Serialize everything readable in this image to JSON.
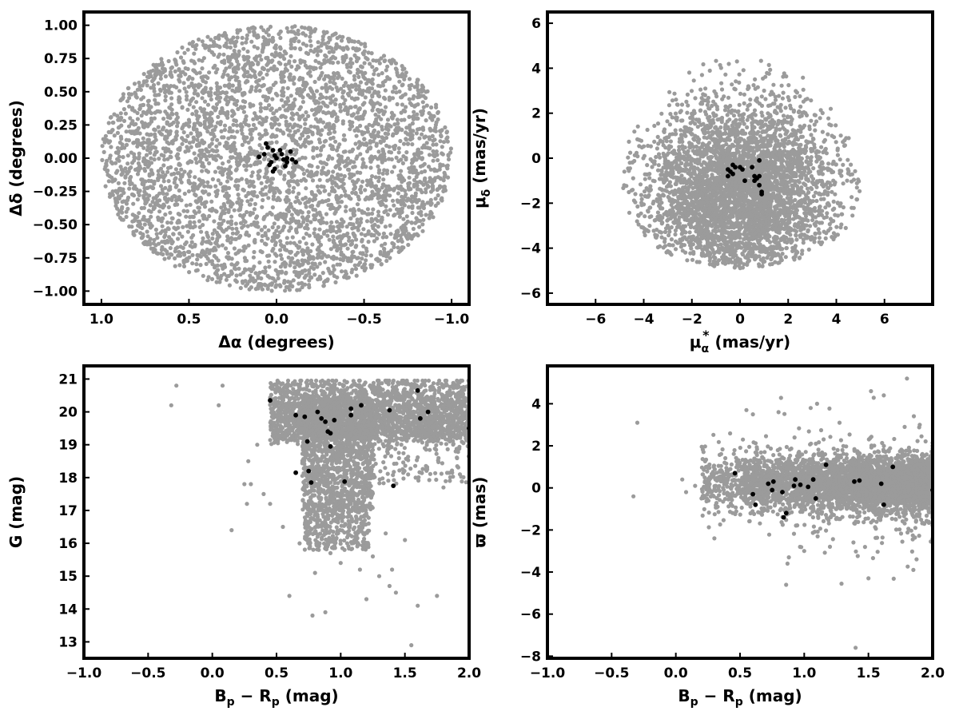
{
  "colors": {
    "field": "#9b9b9b",
    "members": "#000000",
    "axes": "#000000"
  },
  "chart_data": [
    {
      "id": "panel-a",
      "type": "scatter",
      "title": "",
      "xlabel": "Δα (degrees)",
      "ylabel": "Δδ (degrees)",
      "xlim": [
        1.1,
        -1.1
      ],
      "ylim": [
        -1.1,
        1.1
      ],
      "x_inverted": true,
      "xticks": [
        1.0,
        0.5,
        0.0,
        -0.5,
        -1.0
      ],
      "xtick_labels": [
        "1.0",
        "0.5",
        "0.0",
        "−0.5",
        "−1.0"
      ],
      "yticks": [
        1.0,
        0.75,
        0.5,
        0.25,
        0.0,
        -0.25,
        -0.5,
        -0.75,
        -1.0
      ],
      "ytick_labels": [
        "1.00",
        "0.75",
        "0.50",
        "0.25",
        "0.00",
        "−0.25",
        "−0.50",
        "−0.75",
        "−1.00"
      ],
      "grid": false,
      "series": [
        {
          "role": "field",
          "color": "#9b9b9b",
          "distribution": "uniform-disk",
          "center": [
            0,
            0
          ],
          "radius": [
            1.0,
            1.0
          ],
          "approx_count": 4000,
          "points": []
        },
        {
          "role": "members",
          "color": "#000000",
          "points": [
            [
              0.06,
              0.11
            ],
            [
              0.05,
              0.08
            ],
            [
              0.02,
              0.06
            ],
            [
              -0.02,
              0.06
            ],
            [
              0.01,
              0.02
            ],
            [
              -0.03,
              0.03
            ],
            [
              -0.04,
              -0.01
            ],
            [
              -0.06,
              0.0
            ],
            [
              0.07,
              0.03
            ],
            [
              -0.08,
              0.05
            ],
            [
              0.03,
              -0.03
            ],
            [
              0.04,
              -0.05
            ],
            [
              0.01,
              -0.08
            ],
            [
              0.02,
              -0.1
            ],
            [
              -0.05,
              -0.06
            ],
            [
              -0.06,
              -0.03
            ],
            [
              -0.11,
              -0.03
            ],
            [
              0.0,
              0.0
            ],
            [
              -0.09,
              -0.01
            ],
            [
              0.1,
              0.01
            ]
          ]
        }
      ]
    },
    {
      "id": "panel-b",
      "type": "scatter",
      "title": "",
      "xlabel": "μα* (mas/yr)",
      "xlabel_parts": {
        "base": "μ",
        "sub": "α",
        "sup": "*",
        "unit": "(mas/yr)"
      },
      "ylabel": "μδ (mas/yr)",
      "ylabel_parts": {
        "base": "μ",
        "sub": "δ",
        "unit": "(mas/yr)"
      },
      "xlim": [
        -8,
        8
      ],
      "ylim": [
        -6.5,
        6.5
      ],
      "xticks": [
        -6,
        -4,
        -2,
        0,
        2,
        4,
        6
      ],
      "xtick_labels": [
        "−6",
        "−4",
        "−2",
        "0",
        "2",
        "4",
        "6"
      ],
      "yticks": [
        6,
        4,
        2,
        0,
        -2,
        -4,
        -6
      ],
      "ytick_labels": [
        "6",
        "4",
        "2",
        "0",
        "−2",
        "−4",
        "−6"
      ],
      "grid": false,
      "series": [
        {
          "role": "field",
          "color": "#9b9b9b",
          "distribution": "clipped-gaussian",
          "center": [
            0.0,
            -1.5
          ],
          "sigma": [
            2.0,
            2.0
          ],
          "clip": [
            -5.0,
            5.0,
            -4.9,
            4.6
          ],
          "approx_count": 4000,
          "points": []
        },
        {
          "role": "members",
          "color": "#000000",
          "points": [
            [
              -0.5,
              -0.8
            ],
            [
              -0.4,
              -0.6
            ],
            [
              -0.3,
              -0.3
            ],
            [
              -0.2,
              -0.4
            ],
            [
              0.0,
              -0.4
            ],
            [
              0.1,
              -0.5
            ],
            [
              -0.5,
              -0.5
            ],
            [
              0.5,
              -0.4
            ],
            [
              0.6,
              -0.8
            ],
            [
              0.7,
              -0.9
            ],
            [
              0.8,
              -0.8
            ],
            [
              0.6,
              -1.0
            ],
            [
              0.8,
              -1.2
            ],
            [
              0.9,
              -1.5
            ],
            [
              0.9,
              -1.6
            ],
            [
              0.2,
              -1.0
            ],
            [
              0.8,
              -0.1
            ],
            [
              -0.3,
              -0.7
            ]
          ]
        }
      ]
    },
    {
      "id": "panel-c",
      "type": "scatter",
      "title": "",
      "xlabel": "Bp − Rp (mag)",
      "xlabel_parts": {
        "a": "B",
        "a_sub": "p",
        "op": " − ",
        "b": "R",
        "b_sub": "p",
        "unit": "(mag)"
      },
      "ylabel": "G (mag)",
      "xlim": [
        -1.0,
        2.0
      ],
      "ylim": [
        12.5,
        21.4
      ],
      "y_inverted": false,
      "xticks": [
        -1.0,
        -0.5,
        0.0,
        0.5,
        1.0,
        1.5,
        2.0
      ],
      "xtick_labels": [
        "−1.0",
        "−0.5",
        "0.0",
        "0.5",
        "1.0",
        "1.5",
        "2.0"
      ],
      "yticks": [
        21,
        20,
        19,
        18,
        17,
        16,
        15,
        14,
        13
      ],
      "ytick_labels": [
        "21",
        "20",
        "19",
        "18",
        "17",
        "16",
        "15",
        "14",
        "13"
      ],
      "grid": false,
      "series": [
        {
          "role": "field",
          "color": "#9b9b9b",
          "distribution": "cmd-cloud",
          "approx_count": 4200,
          "points": [
            [
              -0.32,
              20.2
            ],
            [
              -0.28,
              20.8
            ],
            [
              0.05,
              20.2
            ],
            [
              0.08,
              20.8
            ],
            [
              0.15,
              16.4
            ],
            [
              0.25,
              17.8
            ],
            [
              0.27,
              17.2
            ],
            [
              0.3,
              17.8
            ],
            [
              0.28,
              18.5
            ],
            [
              0.35,
              19.0
            ],
            [
              0.4,
              17.5
            ],
            [
              0.45,
              17.2
            ],
            [
              0.55,
              16.5
            ],
            [
              0.6,
              14.4
            ],
            [
              0.68,
              16.0
            ],
            [
              0.78,
              13.8
            ],
            [
              0.8,
              15.1
            ],
            [
              0.88,
              13.9
            ],
            [
              0.92,
              15.7
            ],
            [
              1.0,
              15.4
            ],
            [
              1.05,
              16.0
            ],
            [
              1.15,
              15.2
            ],
            [
              1.2,
              14.3
            ],
            [
              1.25,
              15.6
            ],
            [
              1.3,
              15.0
            ],
            [
              1.35,
              16.3
            ],
            [
              1.38,
              14.7
            ],
            [
              1.4,
              15.2
            ],
            [
              1.43,
              14.5
            ],
            [
              1.5,
              16.1
            ],
            [
              1.55,
              12.9
            ],
            [
              1.6,
              14.1
            ],
            [
              1.75,
              14.4
            ],
            [
              1.8,
              17.7
            ],
            [
              1.85,
              17.9
            ]
          ]
        },
        {
          "role": "members",
          "color": "#000000",
          "points": [
            [
              0.45,
              20.35
            ],
            [
              0.65,
              19.9
            ],
            [
              0.72,
              19.85
            ],
            [
              0.82,
              20.0
            ],
            [
              0.85,
              19.8
            ],
            [
              0.88,
              19.7
            ],
            [
              0.95,
              19.75
            ],
            [
              0.9,
              19.4
            ],
            [
              0.92,
              19.35
            ],
            [
              1.08,
              20.1
            ],
            [
              1.08,
              19.9
            ],
            [
              1.16,
              20.2
            ],
            [
              1.38,
              20.05
            ],
            [
              1.6,
              20.65
            ],
            [
              1.68,
              20.0
            ],
            [
              1.62,
              19.8
            ],
            [
              2.0,
              19.5
            ],
            [
              0.74,
              19.1
            ],
            [
              0.92,
              18.95
            ],
            [
              0.65,
              18.15
            ],
            [
              0.75,
              18.2
            ],
            [
              0.77,
              17.85
            ],
            [
              1.03,
              17.88
            ],
            [
              1.41,
              17.75
            ]
          ]
        }
      ]
    },
    {
      "id": "panel-d",
      "type": "scatter",
      "title": "",
      "xlabel": "Bp − Rp (mag)",
      "xlabel_parts": {
        "a": "B",
        "a_sub": "p",
        "op": " − ",
        "b": "R",
        "b_sub": "p",
        "unit": "(mag)"
      },
      "ylabel": "ϖ (mas)",
      "xlim": [
        -1.0,
        2.0
      ],
      "ylim": [
        -8.1,
        5.8
      ],
      "xticks": [
        -1.0,
        -0.5,
        0.0,
        0.5,
        1.0,
        1.5,
        2.0
      ],
      "xtick_labels": [
        "−1.0",
        "−0.5",
        "0.0",
        "0.5",
        "1.0",
        "1.5",
        "2.0"
      ],
      "yticks": [
        4,
        2,
        0,
        -2,
        -4,
        -6,
        -8
      ],
      "ytick_labels": [
        "4",
        "2",
        "0",
        "−2",
        "−4",
        "−6",
        "−8"
      ],
      "grid": false,
      "series": [
        {
          "role": "field",
          "color": "#9b9b9b",
          "distribution": "parallax-band",
          "approx_count": 4200,
          "points": [
            [
              -0.3,
              3.1
            ],
            [
              -0.33,
              -0.4
            ],
            [
              -1.0,
              -8.0
            ],
            [
              0.05,
              0.4
            ],
            [
              0.08,
              -0.2
            ],
            [
              0.15,
              0.1
            ],
            [
              0.2,
              -0.5
            ],
            [
              0.3,
              -2.4
            ],
            [
              0.38,
              1.2
            ],
            [
              0.55,
              3.7
            ],
            [
              0.6,
              3.5
            ],
            [
              0.8,
              3.6
            ],
            [
              0.88,
              -3.3
            ],
            [
              1.0,
              -3.0
            ],
            [
              1.05,
              3.8
            ],
            [
              1.1,
              4.0
            ],
            [
              1.2,
              -2.8
            ],
            [
              1.4,
              -7.6
            ],
            [
              1.5,
              -4.3
            ],
            [
              1.52,
              4.6
            ],
            [
              1.62,
              4.4
            ],
            [
              1.8,
              5.2
            ],
            [
              1.85,
              -3.9
            ],
            [
              1.9,
              3.0
            ]
          ]
        },
        {
          "role": "members",
          "color": "#000000",
          "points": [
            [
              0.46,
              0.7
            ],
            [
              0.6,
              -0.3
            ],
            [
              0.62,
              -0.8
            ],
            [
              0.72,
              0.2
            ],
            [
              0.75,
              -0.1
            ],
            [
              0.76,
              0.3
            ],
            [
              0.83,
              -0.2
            ],
            [
              0.84,
              -1.4
            ],
            [
              0.86,
              -1.2
            ],
            [
              0.92,
              0.1
            ],
            [
              0.93,
              0.4
            ],
            [
              0.97,
              0.15
            ],
            [
              1.03,
              0.05
            ],
            [
              1.07,
              0.4
            ],
            [
              1.09,
              -0.5
            ],
            [
              1.17,
              1.1
            ],
            [
              1.39,
              0.3
            ],
            [
              1.43,
              0.35
            ],
            [
              1.6,
              0.2
            ],
            [
              1.62,
              -0.8
            ],
            [
              1.69,
              1.0
            ],
            [
              2.0,
              -0.1
            ]
          ]
        }
      ]
    }
  ]
}
